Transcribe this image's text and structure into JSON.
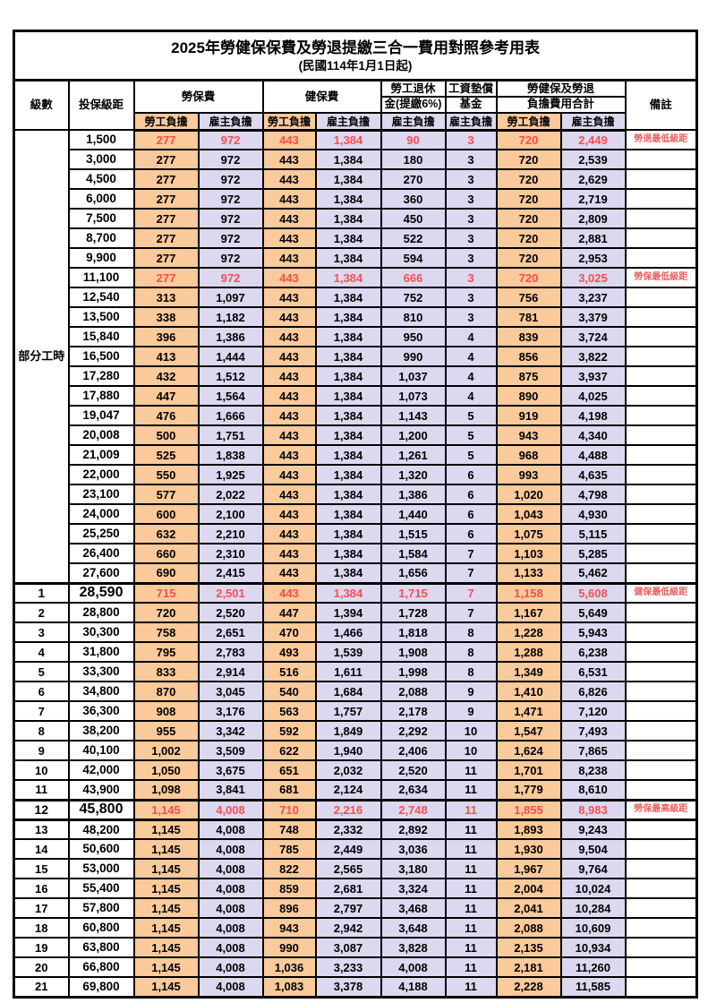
{
  "title": "2025年勞健保保費及勞退提繳三合一費用對照參考用表",
  "subtitle": "(民國114年1月1日起)",
  "header": {
    "level": "級數",
    "bracket": "投保級距",
    "labor_group": "勞保費",
    "health_group": "健保費",
    "pension_line1": "勞工退休",
    "pension_line2": "金(提繳6%)",
    "wage_fund_line1": "工資墊償",
    "wage_fund_line2": "基金",
    "total_line1": "勞健保及勞退",
    "total_line2": "負擔費用合計",
    "remark": "備註",
    "employee_label": "勞工負擔",
    "employer_label": "雇主負擔"
  },
  "part_time_label": "部分工時",
  "colors": {
    "employee_bg": "#FBCA9A",
    "employer_bg": "#DCD8F0",
    "highlight_text": "#FB4E4E",
    "note_text": "#F25F5F"
  },
  "rows": [
    {
      "level": "",
      "bracket": "1,500",
      "values": [
        "277",
        "972",
        "443",
        "1,384",
        "90",
        "3",
        "720",
        "2,449"
      ],
      "note": "勞退最低級距",
      "highlight": true,
      "emphasis": false
    },
    {
      "level": "",
      "bracket": "3,000",
      "values": [
        "277",
        "972",
        "443",
        "1,384",
        "180",
        "3",
        "720",
        "2,539"
      ],
      "note": "",
      "highlight": false,
      "emphasis": false
    },
    {
      "level": "",
      "bracket": "4,500",
      "values": [
        "277",
        "972",
        "443",
        "1,384",
        "270",
        "3",
        "720",
        "2,629"
      ],
      "note": "",
      "highlight": false,
      "emphasis": false
    },
    {
      "level": "",
      "bracket": "6,000",
      "values": [
        "277",
        "972",
        "443",
        "1,384",
        "360",
        "3",
        "720",
        "2,719"
      ],
      "note": "",
      "highlight": false,
      "emphasis": false
    },
    {
      "level": "",
      "bracket": "7,500",
      "values": [
        "277",
        "972",
        "443",
        "1,384",
        "450",
        "3",
        "720",
        "2,809"
      ],
      "note": "",
      "highlight": false,
      "emphasis": false
    },
    {
      "level": "",
      "bracket": "8,700",
      "values": [
        "277",
        "972",
        "443",
        "1,384",
        "522",
        "3",
        "720",
        "2,881"
      ],
      "note": "",
      "highlight": false,
      "emphasis": false
    },
    {
      "level": "",
      "bracket": "9,900",
      "values": [
        "277",
        "972",
        "443",
        "1,384",
        "594",
        "3",
        "720",
        "2,953"
      ],
      "note": "",
      "highlight": false,
      "emphasis": false
    },
    {
      "level": "",
      "bracket": "11,100",
      "values": [
        "277",
        "972",
        "443",
        "1,384",
        "666",
        "3",
        "720",
        "3,025"
      ],
      "note": "勞保最低級距",
      "highlight": true,
      "emphasis": false
    },
    {
      "level": "",
      "bracket": "12,540",
      "values": [
        "313",
        "1,097",
        "443",
        "1,384",
        "752",
        "3",
        "756",
        "3,237"
      ],
      "note": "",
      "highlight": false,
      "emphasis": false
    },
    {
      "level": "",
      "bracket": "13,500",
      "values": [
        "338",
        "1,182",
        "443",
        "1,384",
        "810",
        "3",
        "781",
        "3,379"
      ],
      "note": "",
      "highlight": false,
      "emphasis": false
    },
    {
      "level": "",
      "bracket": "15,840",
      "values": [
        "396",
        "1,386",
        "443",
        "1,384",
        "950",
        "4",
        "839",
        "3,724"
      ],
      "note": "",
      "highlight": false,
      "emphasis": false
    },
    {
      "level": "",
      "bracket": "16,500",
      "values": [
        "413",
        "1,444",
        "443",
        "1,384",
        "990",
        "4",
        "856",
        "3,822"
      ],
      "note": "",
      "highlight": false,
      "emphasis": false
    },
    {
      "level": "",
      "bracket": "17,280",
      "values": [
        "432",
        "1,512",
        "443",
        "1,384",
        "1,037",
        "4",
        "875",
        "3,937"
      ],
      "note": "",
      "highlight": false,
      "emphasis": false
    },
    {
      "level": "",
      "bracket": "17,880",
      "values": [
        "447",
        "1,564",
        "443",
        "1,384",
        "1,073",
        "4",
        "890",
        "4,025"
      ],
      "note": "",
      "highlight": false,
      "emphasis": false
    },
    {
      "level": "",
      "bracket": "19,047",
      "values": [
        "476",
        "1,666",
        "443",
        "1,384",
        "1,143",
        "5",
        "919",
        "4,198"
      ],
      "note": "",
      "highlight": false,
      "emphasis": false
    },
    {
      "level": "",
      "bracket": "20,008",
      "values": [
        "500",
        "1,751",
        "443",
        "1,384",
        "1,200",
        "5",
        "943",
        "4,340"
      ],
      "note": "",
      "highlight": false,
      "emphasis": false
    },
    {
      "level": "",
      "bracket": "21,009",
      "values": [
        "525",
        "1,838",
        "443",
        "1,384",
        "1,261",
        "5",
        "968",
        "4,488"
      ],
      "note": "",
      "highlight": false,
      "emphasis": false
    },
    {
      "level": "",
      "bracket": "22,000",
      "values": [
        "550",
        "1,925",
        "443",
        "1,384",
        "1,320",
        "6",
        "993",
        "4,635"
      ],
      "note": "",
      "highlight": false,
      "emphasis": false
    },
    {
      "level": "",
      "bracket": "23,100",
      "values": [
        "577",
        "2,022",
        "443",
        "1,384",
        "1,386",
        "6",
        "1,020",
        "4,798"
      ],
      "note": "",
      "highlight": false,
      "emphasis": false
    },
    {
      "level": "",
      "bracket": "24,000",
      "values": [
        "600",
        "2,100",
        "443",
        "1,384",
        "1,440",
        "6",
        "1,043",
        "4,930"
      ],
      "note": "",
      "highlight": false,
      "emphasis": false
    },
    {
      "level": "",
      "bracket": "25,250",
      "values": [
        "632",
        "2,210",
        "443",
        "1,384",
        "1,515",
        "6",
        "1,075",
        "5,115"
      ],
      "note": "",
      "highlight": false,
      "emphasis": false
    },
    {
      "level": "",
      "bracket": "26,400",
      "values": [
        "660",
        "2,310",
        "443",
        "1,384",
        "1,584",
        "7",
        "1,103",
        "5,285"
      ],
      "note": "",
      "highlight": false,
      "emphasis": false
    },
    {
      "level": "",
      "bracket": "27,600",
      "values": [
        "690",
        "2,415",
        "443",
        "1,384",
        "1,656",
        "7",
        "1,133",
        "5,462"
      ],
      "note": "",
      "highlight": false,
      "emphasis": false
    },
    {
      "level": "1",
      "bracket": "28,590",
      "values": [
        "715",
        "2,501",
        "443",
        "1,384",
        "1,715",
        "7",
        "1,158",
        "5,608"
      ],
      "note": "健保最低級距",
      "highlight": true,
      "emphasis": true
    },
    {
      "level": "2",
      "bracket": "28,800",
      "values": [
        "720",
        "2,520",
        "447",
        "1,394",
        "1,728",
        "7",
        "1,167",
        "5,649"
      ],
      "note": "",
      "highlight": false,
      "emphasis": false
    },
    {
      "level": "3",
      "bracket": "30,300",
      "values": [
        "758",
        "2,651",
        "470",
        "1,466",
        "1,818",
        "8",
        "1,228",
        "5,943"
      ],
      "note": "",
      "highlight": false,
      "emphasis": false
    },
    {
      "level": "4",
      "bracket": "31,800",
      "values": [
        "795",
        "2,783",
        "493",
        "1,539",
        "1,908",
        "8",
        "1,288",
        "6,238"
      ],
      "note": "",
      "highlight": false,
      "emphasis": false
    },
    {
      "level": "5",
      "bracket": "33,300",
      "values": [
        "833",
        "2,914",
        "516",
        "1,611",
        "1,998",
        "8",
        "1,349",
        "6,531"
      ],
      "note": "",
      "highlight": false,
      "emphasis": false
    },
    {
      "level": "6",
      "bracket": "34,800",
      "values": [
        "870",
        "3,045",
        "540",
        "1,684",
        "2,088",
        "9",
        "1,410",
        "6,826"
      ],
      "note": "",
      "highlight": false,
      "emphasis": false
    },
    {
      "level": "7",
      "bracket": "36,300",
      "values": [
        "908",
        "3,176",
        "563",
        "1,757",
        "2,178",
        "9",
        "1,471",
        "7,120"
      ],
      "note": "",
      "highlight": false,
      "emphasis": false
    },
    {
      "level": "8",
      "bracket": "38,200",
      "values": [
        "955",
        "3,342",
        "592",
        "1,849",
        "2,292",
        "10",
        "1,547",
        "7,493"
      ],
      "note": "",
      "highlight": false,
      "emphasis": false
    },
    {
      "level": "9",
      "bracket": "40,100",
      "values": [
        "1,002",
        "3,509",
        "622",
        "1,940",
        "2,406",
        "10",
        "1,624",
        "7,865"
      ],
      "note": "",
      "highlight": false,
      "emphasis": false
    },
    {
      "level": "10",
      "bracket": "42,000",
      "values": [
        "1,050",
        "3,675",
        "651",
        "2,032",
        "2,520",
        "11",
        "1,701",
        "8,238"
      ],
      "note": "",
      "highlight": false,
      "emphasis": false
    },
    {
      "level": "11",
      "bracket": "43,900",
      "values": [
        "1,098",
        "3,841",
        "681",
        "2,124",
        "2,634",
        "11",
        "1,779",
        "8,610"
      ],
      "note": "",
      "highlight": false,
      "emphasis": false
    },
    {
      "level": "12",
      "bracket": "45,800",
      "values": [
        "1,145",
        "4,008",
        "710",
        "2,216",
        "2,748",
        "11",
        "1,855",
        "8,983"
      ],
      "note": "勞保最高級距",
      "highlight": true,
      "emphasis": true
    },
    {
      "level": "13",
      "bracket": "48,200",
      "values": [
        "1,145",
        "4,008",
        "748",
        "2,332",
        "2,892",
        "11",
        "1,893",
        "9,243"
      ],
      "note": "",
      "highlight": false,
      "emphasis": false
    },
    {
      "level": "14",
      "bracket": "50,600",
      "values": [
        "1,145",
        "4,008",
        "785",
        "2,449",
        "3,036",
        "11",
        "1,930",
        "9,504"
      ],
      "note": "",
      "highlight": false,
      "emphasis": false
    },
    {
      "level": "15",
      "bracket": "53,000",
      "values": [
        "1,145",
        "4,008",
        "822",
        "2,565",
        "3,180",
        "11",
        "1,967",
        "9,764"
      ],
      "note": "",
      "highlight": false,
      "emphasis": false
    },
    {
      "level": "16",
      "bracket": "55,400",
      "values": [
        "1,145",
        "4,008",
        "859",
        "2,681",
        "3,324",
        "11",
        "2,004",
        "10,024"
      ],
      "note": "",
      "highlight": false,
      "emphasis": false
    },
    {
      "level": "17",
      "bracket": "57,800",
      "values": [
        "1,145",
        "4,008",
        "896",
        "2,797",
        "3,468",
        "11",
        "2,041",
        "10,284"
      ],
      "note": "",
      "highlight": false,
      "emphasis": false
    },
    {
      "level": "18",
      "bracket": "60,800",
      "values": [
        "1,145",
        "4,008",
        "943",
        "2,942",
        "3,648",
        "11",
        "2,088",
        "10,609"
      ],
      "note": "",
      "highlight": false,
      "emphasis": false
    },
    {
      "level": "19",
      "bracket": "63,800",
      "values": [
        "1,145",
        "4,008",
        "990",
        "3,087",
        "3,828",
        "11",
        "2,135",
        "10,934"
      ],
      "note": "",
      "highlight": false,
      "emphasis": false
    },
    {
      "level": "20",
      "bracket": "66,800",
      "values": [
        "1,145",
        "4,008",
        "1,036",
        "3,233",
        "4,008",
        "11",
        "2,181",
        "11,260"
      ],
      "note": "",
      "highlight": false,
      "emphasis": false
    },
    {
      "level": "21",
      "bracket": "69,800",
      "values": [
        "1,145",
        "4,008",
        "1,083",
        "3,378",
        "4,188",
        "11",
        "2,228",
        "11,585"
      ],
      "note": "",
      "highlight": false,
      "emphasis": false
    }
  ]
}
